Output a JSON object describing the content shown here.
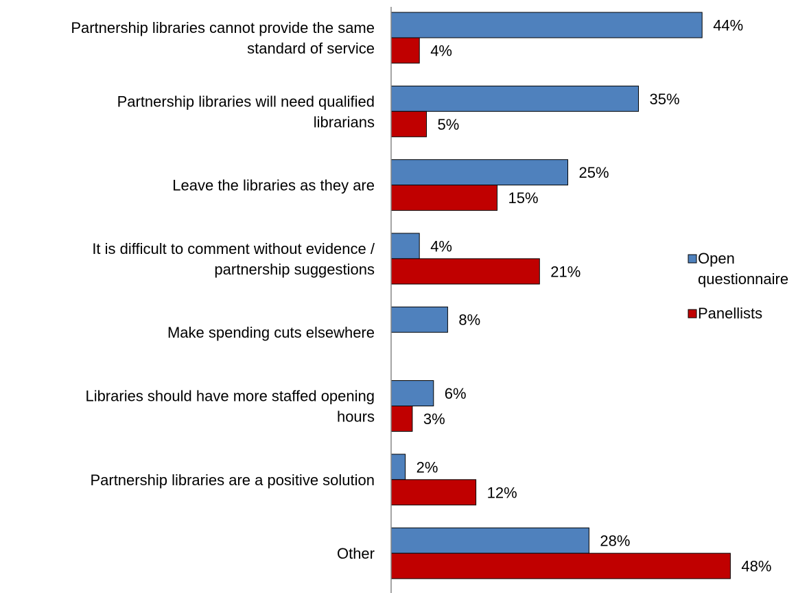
{
  "chart_data": {
    "type": "bar",
    "orientation": "horizontal",
    "title": "",
    "xlabel": "",
    "ylabel": "",
    "xlim": [
      0,
      50
    ],
    "grid": false,
    "legend_position": "right",
    "categories": [
      [
        "Partnership libraries cannot provide the same",
        "standard of service"
      ],
      [
        "Partnership libraries will need qualified",
        "librarians"
      ],
      [
        "Leave the libraries as they are"
      ],
      [
        "It is difficult to comment without evidence /",
        "partnership suggestions"
      ],
      [
        "Make spending cuts elsewhere"
      ],
      [
        "Libraries should have more staffed opening",
        "hours"
      ],
      [
        "Partnership libraries are a positive solution"
      ],
      [
        "Other"
      ]
    ],
    "series": [
      {
        "name": [
          "Open",
          "questionnaire"
        ],
        "color": "#4F81BD",
        "values": [
          44,
          35,
          25,
          4,
          8,
          6,
          2,
          28
        ],
        "labels": [
          "44%",
          "35%",
          "25%",
          "4%",
          "8%",
          "6%",
          "2%",
          "28%"
        ]
      },
      {
        "name": [
          "Panellists"
        ],
        "color": "#C00000",
        "values": [
          4,
          5,
          15,
          21,
          null,
          3,
          12,
          48
        ],
        "labels": [
          "4%",
          "5%",
          "15%",
          "21%",
          "",
          "3%",
          "12%",
          "48%"
        ]
      }
    ]
  }
}
